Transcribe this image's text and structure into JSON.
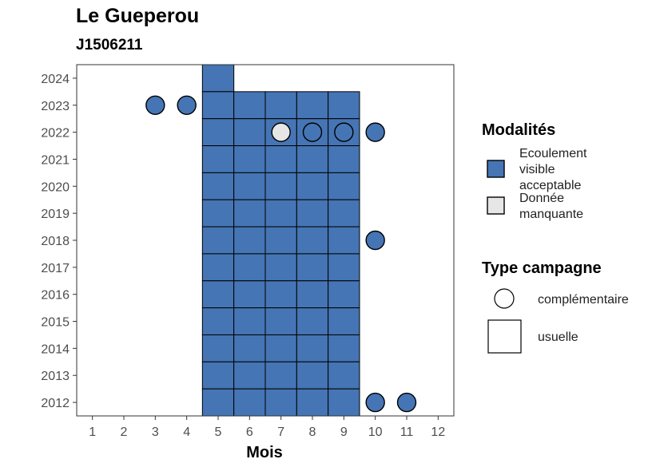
{
  "chart_data": {
    "type": "heatmap",
    "title": "Le Gueperou",
    "subtitle": "J1506211",
    "xlabel": "Mois",
    "ylabel": "",
    "x_ticks": [
      1,
      2,
      3,
      4,
      5,
      6,
      7,
      8,
      9,
      10,
      11,
      12
    ],
    "y_ticks": [
      2012,
      2013,
      2014,
      2015,
      2016,
      2017,
      2018,
      2019,
      2020,
      2021,
      2022,
      2023,
      2024
    ],
    "xlim": [
      0.5,
      12.5
    ],
    "ylim": [
      2011.5,
      2024.5
    ],
    "grid": false,
    "legend_placement": "right",
    "colors": {
      "ecoulement_visible_acceptable": "#4575b4",
      "donnee_manquante": "#e6e6e6"
    },
    "legend": {
      "modalites_title": "Modalités",
      "modalites": [
        {
          "key": "ecoulement_visible_acceptable",
          "lines": [
            "Ecoulement",
            "visible",
            "acceptable"
          ]
        },
        {
          "key": "donnee_manquante",
          "lines": [
            "Donnée",
            "manquante"
          ]
        }
      ],
      "type_title": "Type campagne",
      "types": [
        {
          "key": "complementaire",
          "label": "complémentaire",
          "shape": "circle"
        },
        {
          "key": "usuelle",
          "label": "usuelle",
          "shape": "square"
        }
      ]
    },
    "usuelle": [
      {
        "year": 2024,
        "months": [
          5
        ],
        "modalite": "ecoulement_visible_acceptable"
      },
      {
        "year": 2023,
        "months": [
          5,
          6,
          7,
          8,
          9
        ],
        "modalite": "ecoulement_visible_acceptable"
      },
      {
        "year": 2022,
        "months": [
          5,
          6,
          7,
          8,
          9
        ],
        "modalite": "ecoulement_visible_acceptable"
      },
      {
        "year": 2021,
        "months": [
          5,
          6,
          7,
          8,
          9
        ],
        "modalite": "ecoulement_visible_acceptable"
      },
      {
        "year": 2020,
        "months": [
          5,
          6,
          7,
          8,
          9
        ],
        "modalite": "ecoulement_visible_acceptable"
      },
      {
        "year": 2019,
        "months": [
          5,
          6,
          7,
          8,
          9
        ],
        "modalite": "ecoulement_visible_acceptable"
      },
      {
        "year": 2018,
        "months": [
          5,
          6,
          7,
          8,
          9
        ],
        "modalite": "ecoulement_visible_acceptable"
      },
      {
        "year": 2017,
        "months": [
          5,
          6,
          7,
          8,
          9
        ],
        "modalite": "ecoulement_visible_acceptable"
      },
      {
        "year": 2016,
        "months": [
          5,
          6,
          7,
          8,
          9
        ],
        "modalite": "ecoulement_visible_acceptable"
      },
      {
        "year": 2015,
        "months": [
          5,
          6,
          7,
          8,
          9
        ],
        "modalite": "ecoulement_visible_acceptable"
      },
      {
        "year": 2014,
        "months": [
          5,
          6,
          7,
          8,
          9
        ],
        "modalite": "ecoulement_visible_acceptable"
      },
      {
        "year": 2013,
        "months": [
          5,
          6,
          7,
          8,
          9
        ],
        "modalite": "ecoulement_visible_acceptable"
      },
      {
        "year": 2012,
        "months": [
          5,
          6,
          7,
          8,
          9
        ],
        "modalite": "ecoulement_visible_acceptable"
      }
    ],
    "complementaire": [
      {
        "year": 2023,
        "month": 3,
        "modalite": "ecoulement_visible_acceptable"
      },
      {
        "year": 2023,
        "month": 4,
        "modalite": "ecoulement_visible_acceptable"
      },
      {
        "year": 2022,
        "month": 7,
        "modalite": "donnee_manquante"
      },
      {
        "year": 2022,
        "month": 8,
        "modalite": "ecoulement_visible_acceptable"
      },
      {
        "year": 2022,
        "month": 9,
        "modalite": "ecoulement_visible_acceptable"
      },
      {
        "year": 2022,
        "month": 10,
        "modalite": "ecoulement_visible_acceptable"
      },
      {
        "year": 2018,
        "month": 10,
        "modalite": "ecoulement_visible_acceptable"
      },
      {
        "year": 2012,
        "month": 10,
        "modalite": "ecoulement_visible_acceptable"
      },
      {
        "year": 2012,
        "month": 11,
        "modalite": "ecoulement_visible_acceptable"
      }
    ]
  }
}
